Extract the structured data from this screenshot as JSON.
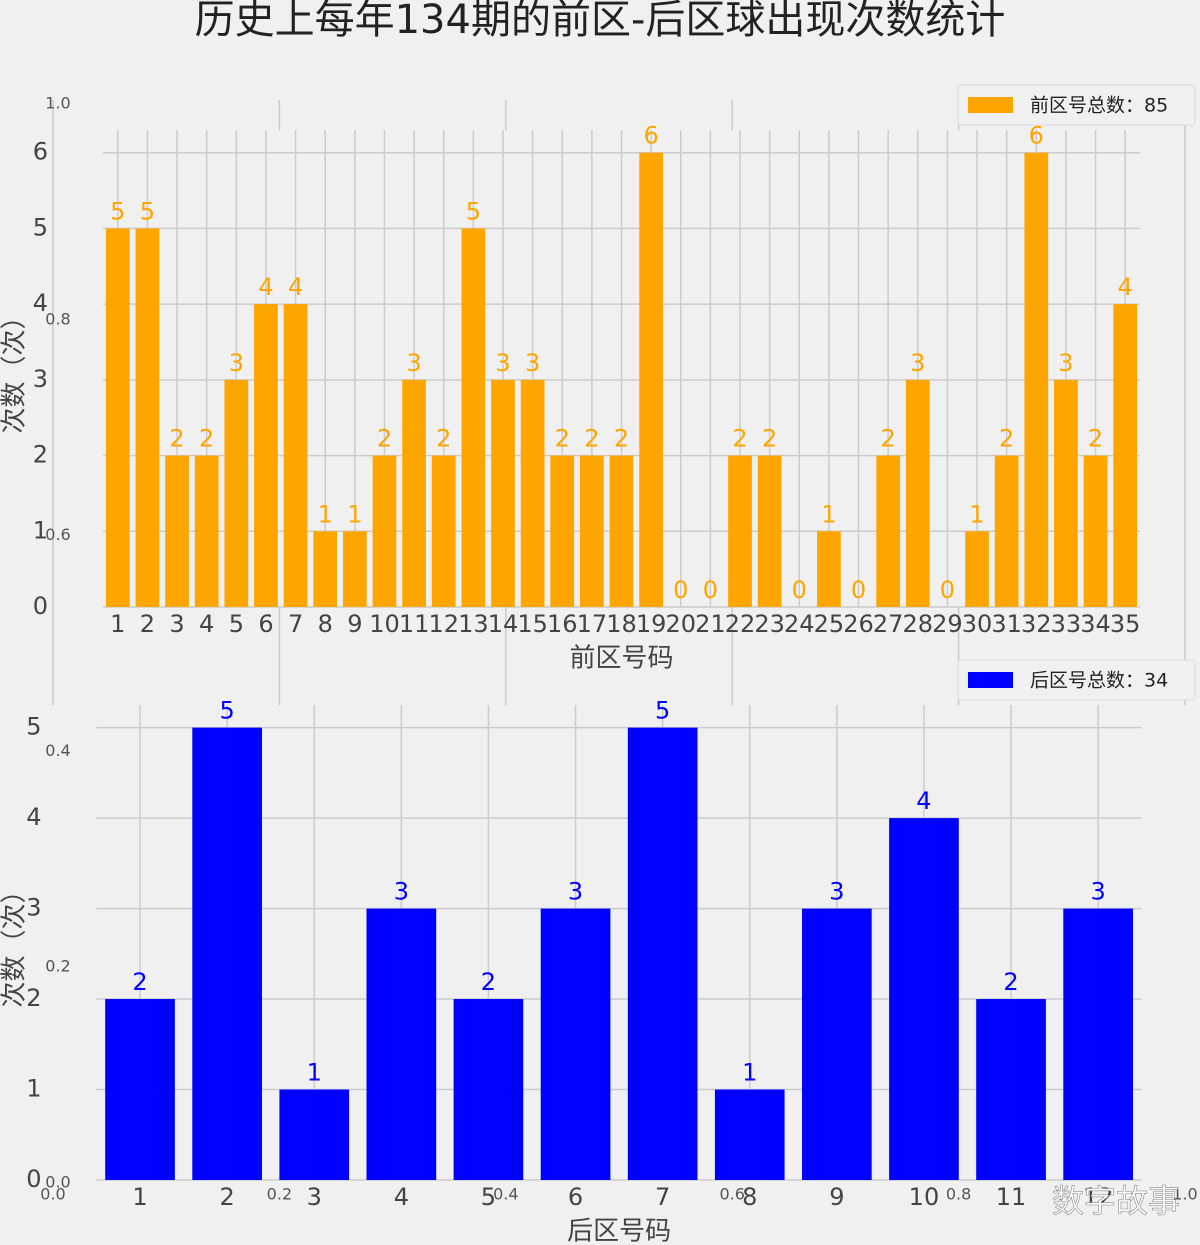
{
  "title": "历史上每年134期的前区-后区球出现次数统计",
  "watermark": "数字故事",
  "chart_data": [
    {
      "type": "blank",
      "xlim": [
        0,
        1
      ],
      "ylim": [
        0,
        1
      ],
      "xticks": [
        {
          "value": 0,
          "label": "0.0"
        },
        {
          "value": 0.2,
          "label": "0.2"
        },
        {
          "value": 0.4,
          "label": "0.4"
        },
        {
          "value": 0.6,
          "label": "0.6"
        },
        {
          "value": 0.8,
          "label": "0.8"
        },
        {
          "value": 1,
          "label": "1.0"
        }
      ],
      "yticks": [
        {
          "value": 0,
          "label": "0.0"
        },
        {
          "value": 0.2,
          "label": "0.2"
        },
        {
          "value": 0.4,
          "label": "0.4"
        },
        {
          "value": 0.6,
          "label": "0.6"
        },
        {
          "value": 0.8,
          "label": "0.8"
        },
        {
          "value": 1,
          "label": "1.0"
        }
      ]
    },
    {
      "type": "bar",
      "x_label": "前区号码",
      "y_label": "次数（次）",
      "categories": [
        "1",
        "2",
        "3",
        "4",
        "5",
        "6",
        "7",
        "8",
        "9",
        "10",
        "11",
        "12",
        "13",
        "14",
        "15",
        "16",
        "17",
        "18",
        "19",
        "20",
        "21",
        "22",
        "23",
        "24",
        "25",
        "26",
        "27",
        "28",
        "29",
        "30",
        "31",
        "32",
        "33",
        "34",
        "35"
      ],
      "series": [
        {
          "name": "前区号总数：85",
          "color": "#ffa500",
          "values": [
            5,
            5,
            2,
            2,
            3,
            4,
            4,
            1,
            1,
            2,
            3,
            2,
            5,
            3,
            3,
            2,
            2,
            2,
            6,
            0,
            0,
            2,
            2,
            0,
            1,
            0,
            2,
            3,
            0,
            1,
            2,
            6,
            3,
            2,
            4
          ]
        }
      ],
      "ylim": [
        0,
        6.3
      ],
      "yticks": [
        0,
        1,
        2,
        3,
        4,
        5,
        6
      ],
      "grid": true,
      "legend": "upper right"
    },
    {
      "type": "bar",
      "x_label": "后区号码",
      "y_label": "次数（次）",
      "categories": [
        "1",
        "2",
        "3",
        "4",
        "5",
        "6",
        "7",
        "8",
        "9",
        "10",
        "11",
        "12"
      ],
      "series": [
        {
          "name": "后区号总数：34",
          "color": "#0000ff",
          "values": [
            2,
            5,
            1,
            3,
            2,
            3,
            5,
            1,
            3,
            4,
            2,
            3
          ]
        }
      ],
      "ylim": [
        0,
        5.25
      ],
      "yticks": [
        0,
        1,
        2,
        3,
        4,
        5
      ],
      "grid": true,
      "legend": "upper right"
    }
  ]
}
